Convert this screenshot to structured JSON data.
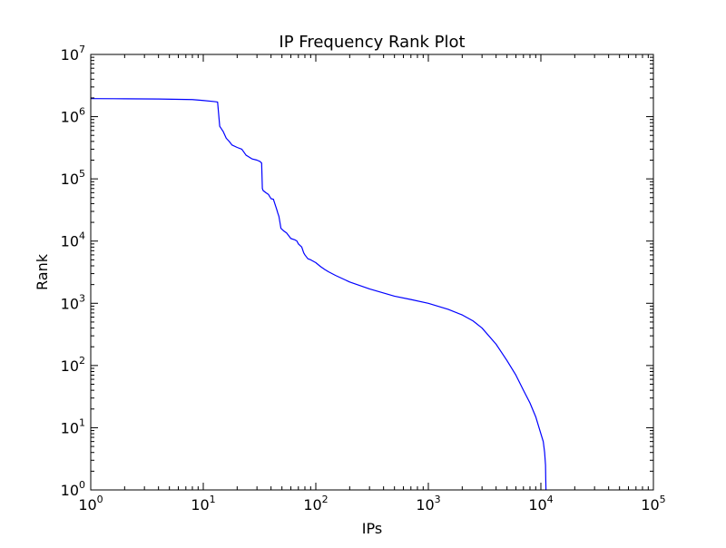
{
  "chart_data": {
    "type": "line",
    "title": "IP Frequency Rank Plot",
    "xlabel": "IPs",
    "ylabel": "Rank",
    "xscale": "log",
    "yscale": "log",
    "xlim": [
      1,
      100000
    ],
    "ylim": [
      1,
      10000000
    ],
    "grid": false,
    "legend": "none",
    "x_ticks": [
      {
        "value": 1,
        "base": "10",
        "exp": "0"
      },
      {
        "value": 10,
        "base": "10",
        "exp": "1"
      },
      {
        "value": 100,
        "base": "10",
        "exp": "2"
      },
      {
        "value": 1000,
        "base": "10",
        "exp": "3"
      },
      {
        "value": 10000,
        "base": "10",
        "exp": "4"
      },
      {
        "value": 100000,
        "base": "10",
        "exp": "5"
      }
    ],
    "y_ticks": [
      {
        "value": 1,
        "base": "10",
        "exp": "0"
      },
      {
        "value": 10,
        "base": "10",
        "exp": "1"
      },
      {
        "value": 100,
        "base": "10",
        "exp": "2"
      },
      {
        "value": 1000,
        "base": "10",
        "exp": "3"
      },
      {
        "value": 10000,
        "base": "10",
        "exp": "4"
      },
      {
        "value": 100000,
        "base": "10",
        "exp": "5"
      },
      {
        "value": 1000000,
        "base": "10",
        "exp": "6"
      },
      {
        "value": 10000000,
        "base": "10",
        "exp": "7"
      }
    ],
    "series": [
      {
        "color": "#0000ff",
        "x": [
          1,
          2,
          4,
          8,
          10,
          12.5,
          13.4,
          14,
          15,
          16,
          17,
          18,
          20,
          22,
          24,
          25,
          27,
          30,
          32,
          33,
          33.5,
          34,
          36,
          38,
          40,
          42,
          45,
          46,
          47,
          48,
          49,
          50,
          52,
          55,
          60,
          65,
          68,
          70,
          75,
          78,
          80,
          85,
          90,
          100,
          110,
          120,
          130,
          150,
          200,
          300,
          500,
          700,
          1000,
          1500,
          2000,
          2500,
          3000,
          4000,
          5000,
          6000,
          7000,
          8000,
          9000,
          10000,
          10500,
          10800,
          11000,
          11050,
          11100
        ],
        "y": [
          1950000,
          1940000,
          1920000,
          1880000,
          1820000,
          1750000,
          1720000,
          700000,
          580000,
          450000,
          400000,
          350000,
          320000,
          300000,
          240000,
          230000,
          210000,
          200000,
          190000,
          180000,
          70000,
          65000,
          60000,
          56000,
          48000,
          47000,
          32000,
          28000,
          25000,
          20000,
          16000,
          15500,
          14500,
          13500,
          11000,
          10500,
          10000,
          9000,
          8000,
          6500,
          6000,
          5200,
          5000,
          4500,
          3900,
          3500,
          3200,
          2800,
          2200,
          1700,
          1300,
          1150,
          1000,
          800,
          650,
          520,
          400,
          220,
          120,
          70,
          40,
          25,
          15,
          8,
          6,
          4,
          2.5,
          1.5,
          1
        ]
      }
    ]
  }
}
